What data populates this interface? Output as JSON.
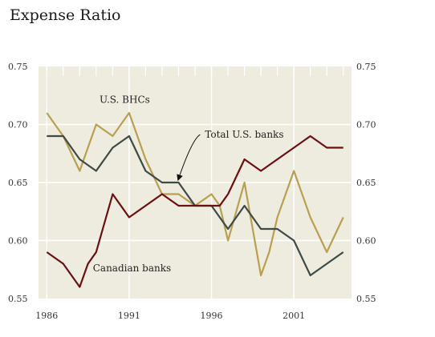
{
  "title": "Expense Ratio",
  "chart_data": {
    "type": "line",
    "title": "Expense Ratio",
    "xlabel": "",
    "ylabel": "",
    "xlim": [
      1985.5,
      2004.5
    ],
    "ylim": [
      0.55,
      0.75
    ],
    "x_ticks": [
      1986,
      1991,
      1996,
      2001
    ],
    "x_tick_labels": [
      "1986",
      "1991",
      "1996",
      "2001"
    ],
    "y_ticks": [
      0.55,
      0.6,
      0.65,
      0.7,
      0.75
    ],
    "y_tick_labels": [
      "0.55",
      "0.60",
      "0.65",
      "0.70",
      "0.75"
    ],
    "grid": true,
    "background": "#eeecdf",
    "series": [
      {
        "name": "U.S. BHCs",
        "color": "#b8a050",
        "x": [
          1986,
          1986.5,
          1987,
          1988,
          1989,
          1990,
          1991,
          1991.5,
          1992,
          1993,
          1994,
          1995,
          1996,
          1996.5,
          1997,
          1998,
          1999,
          1999.5,
          2000,
          2001,
          2002,
          2003,
          2004
        ],
        "y": [
          0.71,
          0.7,
          0.69,
          0.66,
          0.7,
          0.69,
          0.71,
          0.69,
          0.67,
          0.64,
          0.64,
          0.63,
          0.64,
          0.63,
          0.6,
          0.65,
          0.57,
          0.59,
          0.62,
          0.66,
          0.62,
          0.59,
          0.62
        ]
      },
      {
        "name": "Total U.S. banks",
        "color": "#3d4a46",
        "x": [
          1986,
          1987,
          1988,
          1989,
          1990,
          1991,
          1992,
          1993,
          1994,
          1995,
          1996,
          1997,
          1998,
          1999,
          2000,
          2001,
          2002,
          2003,
          2004
        ],
        "y": [
          0.69,
          0.69,
          0.67,
          0.66,
          0.68,
          0.69,
          0.66,
          0.65,
          0.65,
          0.63,
          0.63,
          0.61,
          0.63,
          0.61,
          0.61,
          0.6,
          0.57,
          0.58,
          0.59
        ]
      },
      {
        "name": "Canadian banks",
        "color": "#6b1010",
        "x": [
          1986,
          1987,
          1988,
          1988.5,
          1989,
          1990,
          1991,
          1992,
          1993,
          1994,
          1995,
          1996,
          1996.5,
          1997,
          1998,
          1999,
          2000,
          2001,
          2002,
          2003,
          2004
        ],
        "y": [
          0.59,
          0.58,
          0.56,
          0.58,
          0.59,
          0.64,
          0.62,
          0.63,
          0.64,
          0.63,
          0.63,
          0.63,
          0.63,
          0.64,
          0.67,
          0.66,
          0.67,
          0.68,
          0.69,
          0.68,
          0.68
        ]
      }
    ],
    "annotations": [
      {
        "text": "U.S. BHCs",
        "series": "U.S. BHCs"
      },
      {
        "text": "Total U.S. banks",
        "series": "Total U.S. banks",
        "arrow": true
      },
      {
        "text": "Canadian banks",
        "series": "Canadian banks"
      }
    ]
  }
}
